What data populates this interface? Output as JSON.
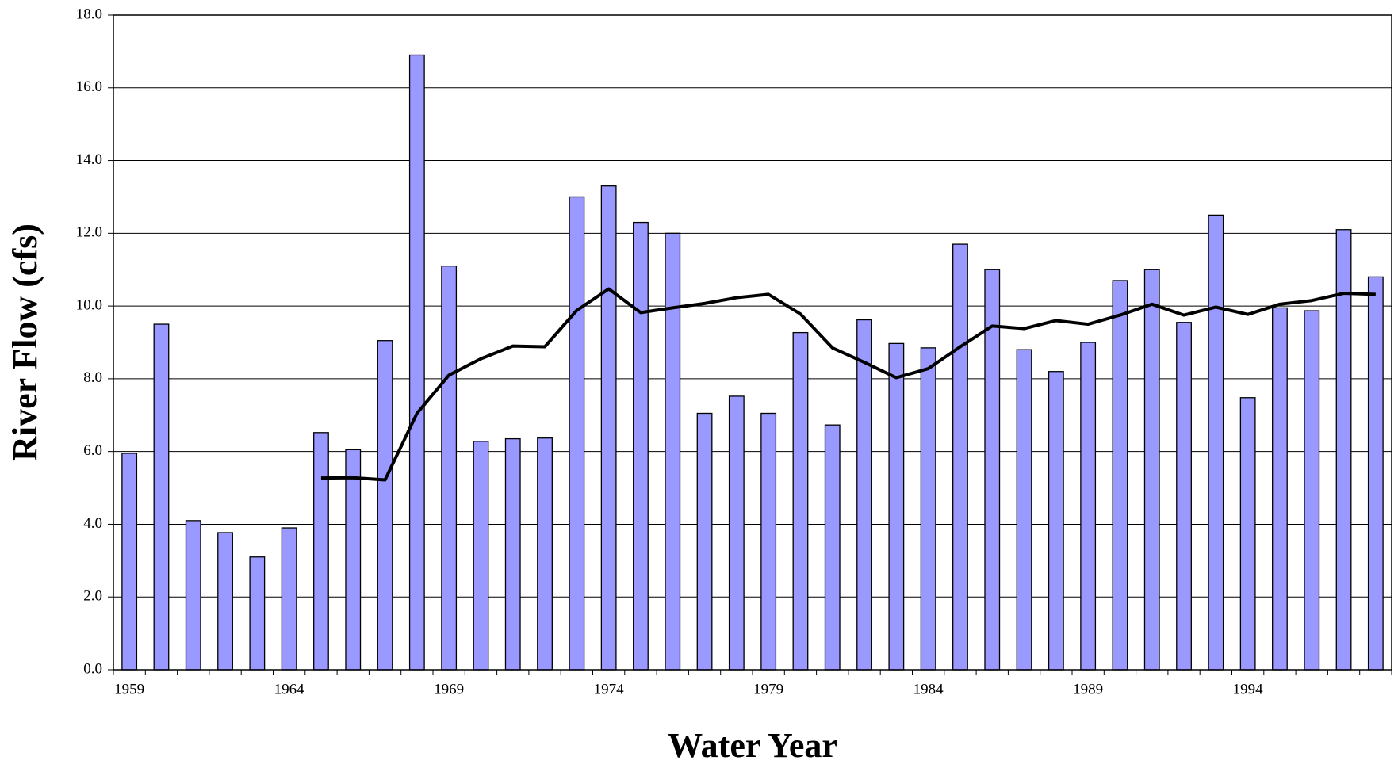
{
  "chart_data": {
    "type": "bar",
    "x_label": "Water Year",
    "y_label": "River Flow (cfs)",
    "categories": [
      "1959",
      null,
      null,
      null,
      null,
      "1964",
      null,
      null,
      null,
      null,
      "1969",
      null,
      null,
      null,
      null,
      "1974",
      null,
      null,
      null,
      null,
      "1979",
      null,
      null,
      null,
      null,
      "1984",
      null,
      null,
      null,
      null,
      "1989",
      null,
      null,
      null,
      null,
      "1994",
      null,
      null,
      null,
      null
    ],
    "series": [
      {
        "type": "bar",
        "color": "#9999ff",
        "values": [
          5.95,
          9.5,
          4.1,
          3.77,
          3.1,
          3.9,
          6.52,
          6.05,
          9.05,
          16.9,
          11.1,
          6.28,
          6.35,
          6.37,
          13.0,
          13.3,
          12.3,
          12.0,
          7.05,
          7.52,
          7.05,
          9.27,
          6.73,
          9.62,
          8.97,
          8.85,
          11.7,
          11.0,
          8.8,
          8.2,
          9.0,
          10.7,
          11.0,
          9.55,
          12.5,
          7.48,
          9.95,
          9.87,
          12.1,
          10.8
        ]
      },
      {
        "type": "line",
        "color": "#000000",
        "values": [
          null,
          null,
          null,
          null,
          null,
          null,
          5.27,
          5.28,
          5.22,
          7.05,
          8.1,
          8.55,
          8.9,
          8.88,
          9.88,
          10.47,
          9.82,
          9.95,
          10.07,
          10.23,
          10.32,
          9.78,
          8.85,
          8.45,
          8.03,
          8.28,
          8.88,
          9.45,
          9.38,
          9.6,
          9.5,
          9.75,
          10.05,
          9.75,
          9.97,
          9.77,
          10.05,
          10.15,
          10.35,
          10.32
        ]
      }
    ],
    "ylim": [
      0,
      18
    ],
    "yticks": [
      {
        "value": 0,
        "label": "0.0"
      },
      {
        "value": 2,
        "label": "2.0"
      },
      {
        "value": 4,
        "label": "4.0"
      },
      {
        "value": 6,
        "label": "6.0"
      },
      {
        "value": 8,
        "label": "8.0"
      },
      {
        "value": 10,
        "label": "10.0"
      },
      {
        "value": 12,
        "label": "12.0"
      },
      {
        "value": 14,
        "label": "14.0"
      },
      {
        "value": 16,
        "label": "16.0"
      },
      {
        "value": 18,
        "label": "18.0"
      }
    ],
    "grid": true
  }
}
